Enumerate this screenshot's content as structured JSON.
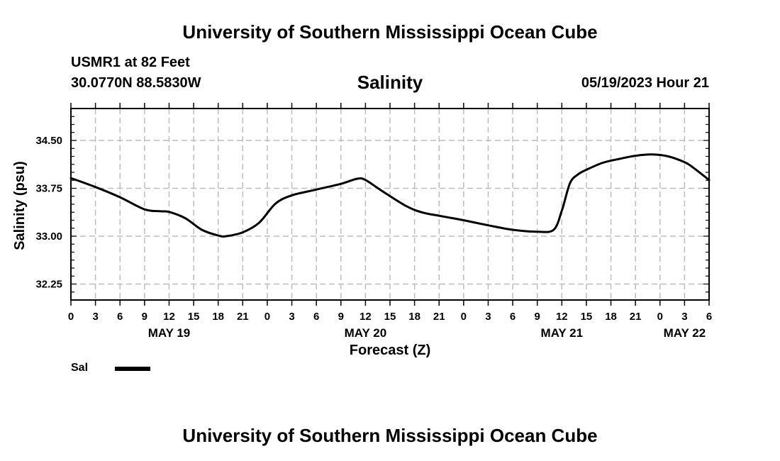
{
  "header": {
    "title_top": "University of Southern Mississippi Ocean Cube",
    "title_bottom": "University of Southern Mississippi Ocean Cube",
    "station": "USMR1 at 82 Feet",
    "coords": "30.0770N  88.5830W",
    "run_time": "05/19/2023 Hour 21"
  },
  "legend": {
    "label": "Sal",
    "color": "#000000"
  },
  "chart_data": {
    "type": "line",
    "title": "Salinity",
    "xlabel": "Forecast (Z)",
    "ylabel": "Salinity (psu)",
    "ylim": [
      32.0,
      35.0
    ],
    "xlim": [
      0,
      78
    ],
    "grid": true,
    "yticks": [
      32.25,
      33.0,
      33.75,
      34.5
    ],
    "ytick_labels": [
      "32.25",
      "33.00",
      "33.75",
      "34.50"
    ],
    "xticks": [
      0,
      3,
      6,
      9,
      12,
      15,
      18,
      21,
      24,
      27,
      30,
      33,
      36,
      39,
      42,
      45,
      48,
      51,
      54,
      57,
      60,
      63,
      66,
      69,
      72,
      75,
      78
    ],
    "xtick_labels": [
      "0",
      "3",
      "6",
      "9",
      "12",
      "15",
      "18",
      "21",
      "0",
      "3",
      "6",
      "9",
      "12",
      "15",
      "18",
      "21",
      "0",
      "3",
      "6",
      "9",
      "12",
      "15",
      "18",
      "21",
      "0",
      "3",
      "6"
    ],
    "date_labels": [
      {
        "x": 12,
        "label": "MAY 19"
      },
      {
        "x": 36,
        "label": "MAY 20"
      },
      {
        "x": 60,
        "label": "MAY 21"
      },
      {
        "x": 75,
        "label": "MAY 22"
      }
    ],
    "series": [
      {
        "name": "Sal",
        "color": "#000000",
        "x": [
          0,
          3,
          6,
          9,
          11,
          12,
          14,
          16,
          18,
          19,
          21,
          23,
          25,
          27,
          30,
          33,
          35,
          36,
          38,
          41,
          43,
          45,
          48,
          51,
          54,
          57,
          59,
          60,
          61,
          62,
          63,
          65,
          67,
          69,
          71,
          73,
          75,
          76,
          78
        ],
        "y": [
          33.91,
          33.77,
          33.61,
          33.42,
          33.39,
          33.38,
          33.28,
          33.1,
          33.01,
          33.0,
          33.06,
          33.21,
          33.51,
          33.64,
          33.73,
          33.82,
          33.9,
          33.88,
          33.71,
          33.47,
          33.37,
          33.32,
          33.25,
          33.17,
          33.1,
          33.07,
          33.1,
          33.4,
          33.83,
          33.97,
          34.04,
          34.15,
          34.21,
          34.26,
          34.28,
          34.25,
          34.16,
          34.08,
          33.88
        ]
      }
    ]
  }
}
